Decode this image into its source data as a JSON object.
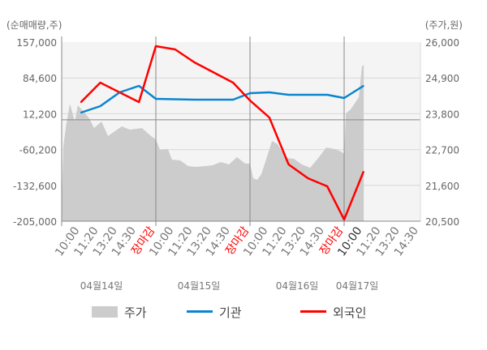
{
  "chart_data": {
    "type": "line",
    "left_axis_title": "(순매매량,주)",
    "right_axis_title": "(주가,원)",
    "left_ylim": [
      -205000,
      157000
    ],
    "left_ticks": [
      "157,000",
      "84,600",
      "12,200",
      "-60,200",
      "-132,600",
      "-205,000"
    ],
    "right_ylim": [
      20500,
      26000
    ],
    "right_ticks": [
      "26,000",
      "24,900",
      "23,800",
      "22,700",
      "21,600",
      "20,500"
    ],
    "grid": true,
    "days": [
      "04월14일",
      "04월15일",
      "04월16일",
      "04월17일"
    ],
    "x_tick_labels": [
      [
        "10:00",
        "11:20",
        "13:20",
        "14:30",
        "장마감"
      ],
      [
        "10:00",
        "11:20",
        "13:20",
        "14:30",
        "장마감"
      ],
      [
        "10:00",
        "11:20",
        "13:20",
        "14:30",
        "장마감"
      ],
      [
        "10:00",
        "11:20",
        "13:20",
        "14:30"
      ]
    ],
    "session": [
      "09:00",
      "15:30"
    ],
    "legend": [
      "주가",
      "기관",
      "외국인"
    ],
    "legend_placement": "bottom",
    "colors": {
      "price": "#cccccc",
      "institution": "#0a84d0",
      "foreign": "#ff0000",
      "close_label": "#ff0000",
      "current_label": "#333333"
    },
    "series": [
      {
        "name": "주가",
        "kind": "area",
        "axis": "right",
        "points": [
          [
            0,
            "09:00",
            21072
          ],
          [
            0,
            "09:07",
            22814
          ],
          [
            0,
            "09:17",
            23387
          ],
          [
            0,
            "09:34",
            24109
          ],
          [
            0,
            "09:54",
            23561
          ],
          [
            0,
            "10:07",
            24059
          ],
          [
            0,
            "10:54",
            23661
          ],
          [
            0,
            "11:14",
            23362
          ],
          [
            0,
            "11:45",
            23561
          ],
          [
            0,
            "12:12",
            23113
          ],
          [
            0,
            "12:35",
            23238
          ],
          [
            0,
            "13:09",
            23412
          ],
          [
            0,
            "13:42",
            23312
          ],
          [
            0,
            "14:33",
            23362
          ],
          [
            0,
            "15:10",
            23113
          ],
          [
            0,
            "15:30",
            23014
          ],
          [
            1,
            "09:17",
            22690
          ],
          [
            1,
            "09:50",
            22715
          ],
          [
            1,
            "10:07",
            22391
          ],
          [
            1,
            "10:41",
            22366
          ],
          [
            1,
            "11:14",
            22192
          ],
          [
            1,
            "11:48",
            22167
          ],
          [
            1,
            "12:55",
            22217
          ],
          [
            1,
            "13:29",
            22317
          ],
          [
            1,
            "14:03",
            22242
          ],
          [
            1,
            "14:36",
            22466
          ],
          [
            1,
            "15:10",
            22267
          ],
          [
            1,
            "15:30",
            22267
          ],
          [
            2,
            "09:13",
            21819
          ],
          [
            2,
            "09:30",
            21769
          ],
          [
            2,
            "09:47",
            21944
          ],
          [
            2,
            "10:11",
            22491
          ],
          [
            2,
            "10:31",
            22964
          ],
          [
            2,
            "10:55",
            22864
          ],
          [
            2,
            "11:28",
            22441
          ],
          [
            2,
            "12:02",
            22416
          ],
          [
            2,
            "12:35",
            22242
          ],
          [
            2,
            "13:09",
            22142
          ],
          [
            2,
            "13:43",
            22441
          ],
          [
            2,
            "14:16",
            22765
          ],
          [
            2,
            "14:50",
            22715
          ],
          [
            2,
            "15:17",
            22640
          ],
          [
            2,
            "15:30",
            22566
          ],
          [
            3,
            "09:07",
            23810
          ],
          [
            3,
            "09:27",
            23934
          ],
          [
            3,
            "10:01",
            24308
          ],
          [
            3,
            "10:14",
            25253
          ],
          [
            3,
            "10:21",
            25303
          ]
        ]
      },
      {
        "name": "기관",
        "kind": "line",
        "axis": "left",
        "points": [
          [
            0,
            "10:20",
            14500
          ],
          [
            0,
            "11:40",
            27600
          ],
          [
            0,
            "13:00",
            55400
          ],
          [
            0,
            "14:20",
            68500
          ],
          [
            0,
            "15:30",
            42300
          ],
          [
            1,
            "11:40",
            40700
          ],
          [
            1,
            "14:20",
            40700
          ],
          [
            1,
            "15:30",
            53800
          ],
          [
            2,
            "10:20",
            55400
          ],
          [
            2,
            "11:40",
            50500
          ],
          [
            2,
            "14:20",
            50500
          ],
          [
            2,
            "15:30",
            44000
          ],
          [
            3,
            "10:20",
            68500
          ]
        ]
      },
      {
        "name": "외국인",
        "kind": "line",
        "axis": "left",
        "points": [
          [
            0,
            "10:20",
            35800
          ],
          [
            0,
            "11:40",
            75100
          ],
          [
            0,
            "14:20",
            35800
          ],
          [
            0,
            "15:30",
            148800
          ],
          [
            1,
            "10:20",
            142300
          ],
          [
            1,
            "11:40",
            116000
          ],
          [
            1,
            "14:20",
            75100
          ],
          [
            1,
            "15:30",
            39100
          ],
          [
            2,
            "10:20",
            4700
          ],
          [
            2,
            "11:40",
            -90300
          ],
          [
            2,
            "13:00",
            -118200
          ],
          [
            2,
            "14:20",
            -134600
          ],
          [
            2,
            "15:30",
            -201700
          ],
          [
            3,
            "10:20",
            -105100
          ]
        ]
      }
    ]
  }
}
